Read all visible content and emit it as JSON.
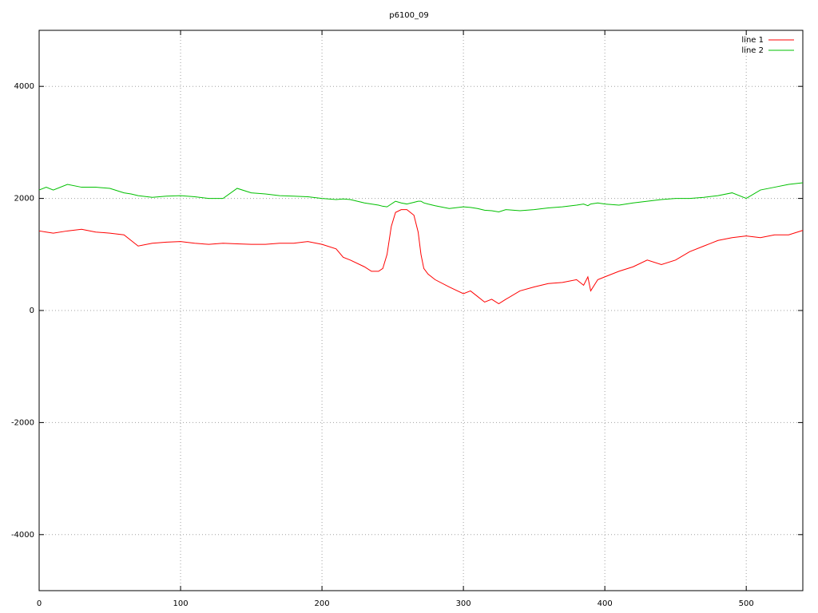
{
  "chart_data": {
    "type": "line",
    "title": "p6100_09",
    "x": [
      0,
      5,
      10,
      20,
      30,
      40,
      50,
      60,
      65,
      70,
      80,
      90,
      100,
      110,
      120,
      130,
      140,
      150,
      160,
      170,
      180,
      190,
      200,
      210,
      215,
      220,
      230,
      235,
      240,
      243,
      246,
      249,
      252,
      256,
      260,
      265,
      268,
      270,
      272,
      275,
      280,
      290,
      300,
      305,
      310,
      315,
      320,
      325,
      330,
      340,
      350,
      360,
      370,
      380,
      385,
      388,
      390,
      395,
      400,
      410,
      420,
      430,
      440,
      450,
      460,
      470,
      480,
      490,
      500,
      510,
      520,
      530,
      540
    ],
    "series": [
      {
        "name": "line 1",
        "color": "#ff0000",
        "values": [
          1420,
          1400,
          1380,
          1420,
          1450,
          1400,
          1380,
          1350,
          1250,
          1150,
          1200,
          1220,
          1230,
          1200,
          1180,
          1200,
          1190,
          1180,
          1180,
          1200,
          1200,
          1230,
          1180,
          1100,
          950,
          900,
          780,
          700,
          700,
          750,
          1000,
          1500,
          1750,
          1800,
          1800,
          1700,
          1400,
          1000,
          750,
          650,
          550,
          420,
          300,
          350,
          250,
          150,
          200,
          120,
          200,
          350,
          420,
          480,
          500,
          550,
          450,
          600,
          350,
          550,
          600,
          700,
          780,
          900,
          820,
          900,
          1050,
          1150,
          1250,
          1300,
          1330,
          1300,
          1350,
          1350,
          1430
        ]
      },
      {
        "name": "line 2",
        "color": "#00c000",
        "values": [
          2150,
          2200,
          2150,
          2250,
          2200,
          2200,
          2180,
          2100,
          2080,
          2050,
          2020,
          2040,
          2050,
          2030,
          2000,
          2000,
          2180,
          2100,
          2080,
          2050,
          2040,
          2030,
          2000,
          1980,
          1990,
          1980,
          1920,
          1900,
          1880,
          1860,
          1850,
          1900,
          1950,
          1920,
          1900,
          1930,
          1950,
          1950,
          1920,
          1900,
          1870,
          1820,
          1850,
          1840,
          1820,
          1790,
          1780,
          1760,
          1800,
          1780,
          1800,
          1830,
          1850,
          1880,
          1900,
          1870,
          1900,
          1920,
          1900,
          1880,
          1920,
          1950,
          1980,
          2000,
          2000,
          2020,
          2050,
          2100,
          2000,
          2150,
          2200,
          2250,
          2280
        ]
      }
    ],
    "xlim": [
      0,
      540
    ],
    "ylim": [
      -5000,
      5000
    ],
    "xticks": [
      0,
      100,
      200,
      300,
      400,
      500
    ],
    "yticks": [
      -4000,
      -2000,
      0,
      2000,
      4000
    ],
    "grid": true,
    "legend": "top-right"
  }
}
